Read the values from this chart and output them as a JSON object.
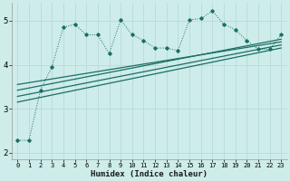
{
  "xlabel": "Humidex (Indice chaleur)",
  "xlim": [
    -0.5,
    23.5
  ],
  "ylim": [
    1.85,
    5.4
  ],
  "yticks": [
    2,
    3,
    4,
    5
  ],
  "xticks": [
    0,
    1,
    2,
    3,
    4,
    5,
    6,
    7,
    8,
    9,
    10,
    11,
    12,
    13,
    14,
    15,
    16,
    17,
    18,
    19,
    20,
    21,
    22,
    23
  ],
  "bg_color": "#cdecea",
  "grid_color": "#b8dbd9",
  "line_color": "#1a6e62",
  "series1_x": [
    0,
    1,
    2,
    3,
    4,
    5,
    6,
    7,
    8,
    9,
    10,
    11,
    12,
    13,
    14,
    15,
    16,
    17,
    18,
    19,
    20,
    21,
    22,
    23
  ],
  "series1_y": [
    2.28,
    2.28,
    3.42,
    3.95,
    4.85,
    4.92,
    4.68,
    4.68,
    4.25,
    5.02,
    4.68,
    4.55,
    4.38,
    4.38,
    4.32,
    5.02,
    5.05,
    5.22,
    4.92,
    4.8,
    4.55,
    4.35,
    4.35,
    4.68
  ],
  "series2_x": [
    0,
    23
  ],
  "series2_y": [
    3.55,
    4.52
  ],
  "series3_x": [
    0,
    23
  ],
  "series3_y": [
    3.42,
    4.58
  ],
  "series4_x": [
    0,
    23
  ],
  "series4_y": [
    3.28,
    4.45
  ],
  "series5_x": [
    0,
    23
  ],
  "series5_y": [
    3.15,
    4.38
  ]
}
